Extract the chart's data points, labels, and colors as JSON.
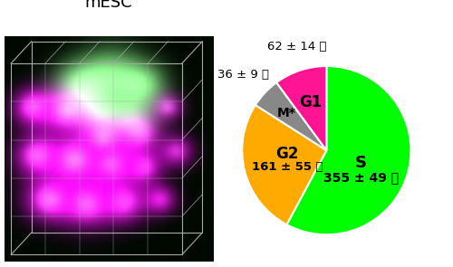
{
  "title_left": "mESC",
  "pie_values": [
    355,
    161,
    36,
    62
  ],
  "pie_colors": [
    "#00ff00",
    "#ffaa00",
    "#888888",
    "#ff1493"
  ],
  "label_S_line1": "S",
  "label_S_line2": "355 ± 49 分",
  "label_G2_line1": "G2",
  "label_G2_line2": "161 ± 55 分",
  "label_M": "M*",
  "label_G1": "G1",
  "outside_M": "36 ± 9 分",
  "outside_G1": "62 ± 14 分",
  "title_fontsize": 13,
  "pie_startangle": 90,
  "bg_color": "#ffffff"
}
